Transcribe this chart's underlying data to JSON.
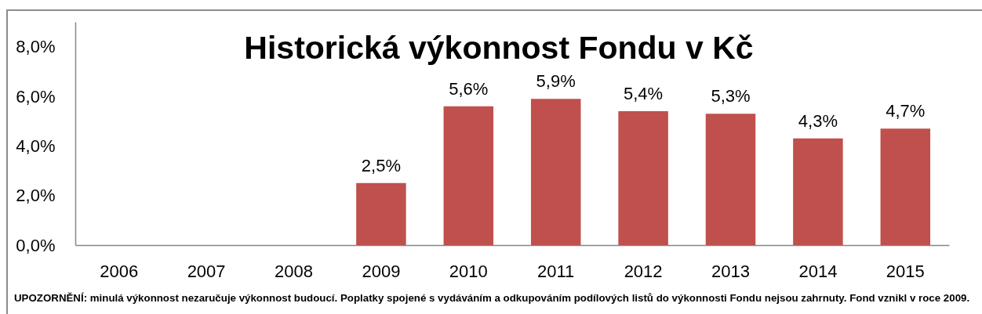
{
  "chart_data": {
    "type": "bar",
    "title": "Historická výkonnost Fondu v Kč",
    "categories": [
      "2006",
      "2007",
      "2008",
      "2009",
      "2010",
      "2011",
      "2012",
      "2013",
      "2014",
      "2015"
    ],
    "values": [
      null,
      null,
      null,
      2.5,
      5.6,
      5.9,
      5.4,
      5.3,
      4.3,
      4.7
    ],
    "value_labels": [
      null,
      null,
      null,
      "2,5%",
      "5,6%",
      "5,9%",
      "5,4%",
      "5,3%",
      "4,3%",
      "4,7%"
    ],
    "color": "#c0504d",
    "ylim": [
      0,
      9
    ],
    "yticks": [
      {
        "value": 0,
        "label": "0,0%"
      },
      {
        "value": 2,
        "label": "2,0%"
      },
      {
        "value": 4,
        "label": "4,0%"
      },
      {
        "value": 6,
        "label": "6,0%"
      },
      {
        "value": 8,
        "label": "8,0%"
      }
    ],
    "annotations": [
      "UPOZORNĚNÍ: minulá výkonnost nezaručuje výkonnost budoucí. Poplatky spojené s vydáváním a odkupováním podílových listů do výkonnosti Fondu nejsou zahrnuty. Fond vznikl v roce 2009."
    ]
  }
}
